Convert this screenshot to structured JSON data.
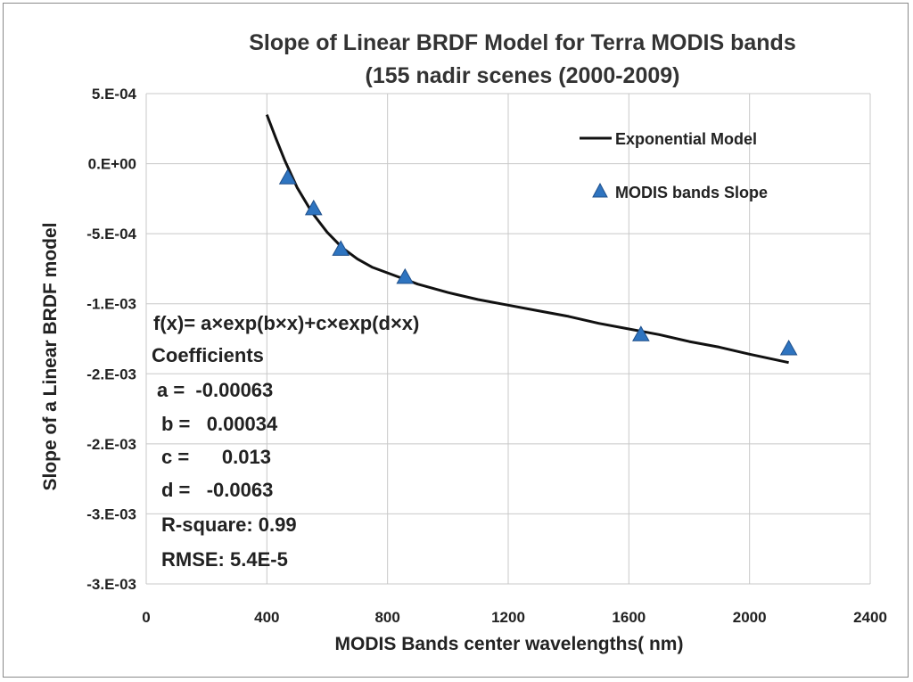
{
  "chart_data": {
    "type": "scatter",
    "title_line1": "Slope of Linear BRDF Model for Terra MODIS bands",
    "title_line2": "(155 nadir scenes (2000-2009)",
    "xlabel": "MODIS Bands center wavelengths( nm)",
    "ylabel": "Slope of a Linear BRDF model",
    "xlim": [
      0,
      2400
    ],
    "ylim": [
      -0.003,
      0.0005
    ],
    "x_ticks": [
      0,
      400,
      800,
      1200,
      1600,
      2000,
      2400
    ],
    "y_ticks": [
      {
        "value": 0.0005,
        "label": "5.E-04"
      },
      {
        "value": 0.0,
        "label": "0.E+00"
      },
      {
        "value": -0.0005,
        "label": "-5.E-04"
      },
      {
        "value": -0.001,
        "label": "-1.E-03"
      },
      {
        "value": -0.0015,
        "label": "-2.E-03"
      },
      {
        "value": -0.002,
        "label": "-2.E-03"
      },
      {
        "value": -0.0025,
        "label": "-3.E-03"
      },
      {
        "value": -0.003,
        "label": "-3.E-03"
      }
    ],
    "grid": true,
    "legend_position": "top-right",
    "series": [
      {
        "name": "Exponential Model",
        "kind": "line",
        "color": "#111111",
        "x": [
          400,
          430,
          460,
          500,
          550,
          600,
          650,
          700,
          750,
          800,
          850,
          900,
          1000,
          1100,
          1200,
          1300,
          1400,
          1500,
          1600,
          1700,
          1800,
          1900,
          2000,
          2130
        ],
        "values": [
          0.00035,
          0.00018,
          2e-05,
          -0.00017,
          -0.00035,
          -0.00049,
          -0.0006,
          -0.00068,
          -0.00074,
          -0.00078,
          -0.00082,
          -0.00086,
          -0.00092,
          -0.00097,
          -0.00101,
          -0.00105,
          -0.00109,
          -0.00114,
          -0.00118,
          -0.00122,
          -0.00127,
          -0.00131,
          -0.00136,
          -0.00142
        ]
      },
      {
        "name": "MODIS bands Slope",
        "kind": "scatter",
        "color": "#2e74c0",
        "x": [
          469,
          555,
          645,
          858,
          1640,
          2130
        ],
        "values": [
          -0.0001,
          -0.00032,
          -0.00061,
          -0.00081,
          -0.00122,
          -0.00132
        ]
      }
    ],
    "annotation_lines": [
      "f(x)= a×exp(b×x)+c×exp(d×x)",
      "Coefficients",
      "a =  -0.00063",
      "b =   0.00034",
      "c =      0.013",
      "d =   -0.0063",
      "R-square: 0.99",
      "RMSE: 5.4E-5"
    ]
  }
}
